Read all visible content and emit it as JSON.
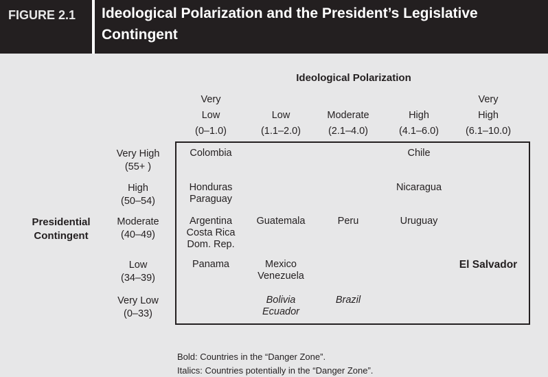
{
  "header": {
    "figure": "FIGURE 2.1",
    "title": [
      "Ideological Polarization and the President’s Legislative",
      "Contingent"
    ]
  },
  "table": {
    "column_title": "Ideological Polarization",
    "row_title": [
      "Presidential",
      "Contingent"
    ],
    "columns": [
      [
        "Very",
        "Low",
        "(0–1.0)"
      ],
      [
        "Low",
        "(1.1–2.0)"
      ],
      [
        "Moderate",
        "(2.1–4.0)"
      ],
      [
        "High",
        "(4.1–6.0)"
      ],
      [
        "Very",
        "High",
        "(6.1–10.0)"
      ]
    ],
    "rows": [
      {
        "label": [
          "Very High",
          "(55+ )"
        ],
        "cells": [
          {
            "lines": [
              "Colombia"
            ]
          },
          null,
          null,
          {
            "lines": [
              "Chile"
            ]
          },
          null
        ]
      },
      {
        "label": [
          "High",
          "(50–54)"
        ],
        "cells": [
          {
            "lines": [
              "Honduras",
              "Paraguay"
            ]
          },
          null,
          null,
          {
            "lines": [
              "Nicaragua"
            ]
          },
          null
        ]
      },
      {
        "label": [
          "Moderate",
          "(40–49)"
        ],
        "cells": [
          {
            "lines": [
              "Argentina",
              "Costa Rica",
              "Dom. Rep."
            ]
          },
          {
            "lines": [
              "Guatemala"
            ]
          },
          {
            "lines": [
              "Peru"
            ]
          },
          {
            "lines": [
              "Uruguay"
            ]
          },
          null
        ]
      },
      {
        "label": [
          "Low",
          "(34–39)"
        ],
        "cells": [
          {
            "lines": [
              "Panama"
            ]
          },
          {
            "lines": [
              "Mexico",
              "Venezuela"
            ]
          },
          null,
          null,
          {
            "lines": [
              "El Salvador"
            ],
            "style": "bold"
          }
        ]
      },
      {
        "label": [
          "Very Low",
          "(0–33)"
        ],
        "cells": [
          null,
          {
            "lines": [
              "Bolivia",
              "Ecuador"
            ],
            "style": "italic"
          },
          {
            "lines": [
              "Brazil"
            ],
            "style": "italic"
          },
          null,
          null
        ]
      }
    ]
  },
  "notes": [
    "Bold: Countries in the “Danger Zone”.",
    "Italics: Countries potentially in the “Danger Zone”."
  ]
}
